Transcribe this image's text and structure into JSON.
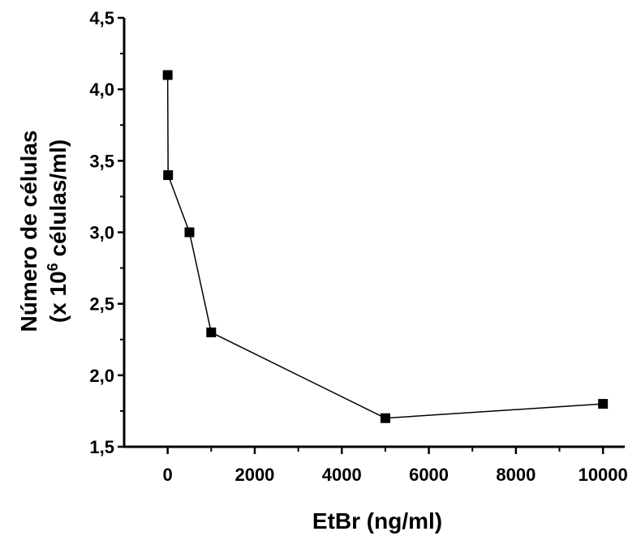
{
  "chart_data": {
    "type": "line",
    "xlabel": "EtBr (ng/ml)",
    "ylabel_line1": "Número de células",
    "ylabel_line2_prefix": "(x 10",
    "ylabel_line2_sup": "6",
    "ylabel_line2_suffix": " células/ml)",
    "xlim": [
      -1000,
      10500
    ],
    "ylim": [
      1.5,
      4.5
    ],
    "x_ticks": [
      0,
      2000,
      4000,
      6000,
      8000,
      10000
    ],
    "x_tick_labels": [
      "0",
      "2000",
      "4000",
      "6000",
      "8000",
      "10000"
    ],
    "y_ticks": [
      1.5,
      2.0,
      2.5,
      3.0,
      3.5,
      4.0,
      4.5
    ],
    "y_tick_labels": [
      "1,5",
      "2,0",
      "2,5",
      "3,0",
      "3,5",
      "4,0",
      "4,5"
    ],
    "grid": false,
    "series": [
      {
        "x": [
          0,
          10,
          500,
          1000,
          5000,
          10000
        ],
        "y": [
          4.1,
          3.4,
          3.0,
          2.3,
          1.7,
          1.8
        ]
      }
    ],
    "colors": {
      "line": "#000000",
      "marker": "#000000"
    }
  }
}
